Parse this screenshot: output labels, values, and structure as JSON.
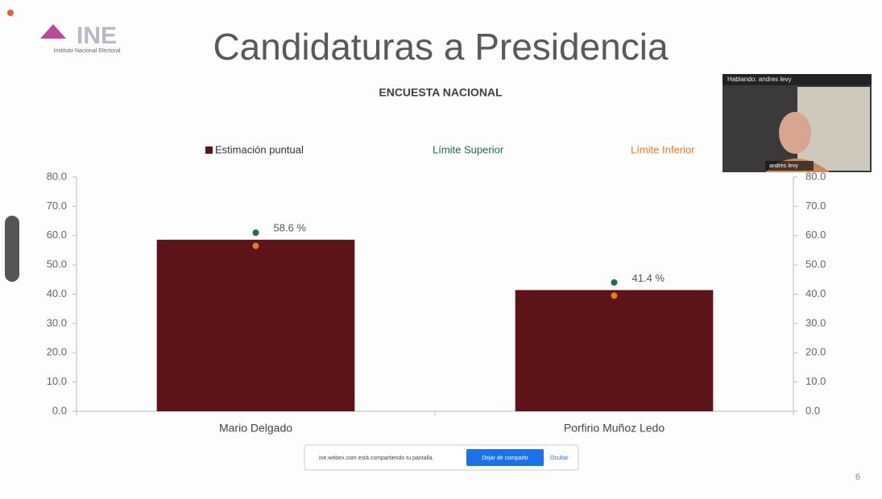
{
  "header": {
    "logo": "INE",
    "logo_subtitle": "Instituto Nacional Electoral",
    "title": "Candidaturas a Presidencia"
  },
  "chart_data": {
    "type": "bar",
    "title": "ENCUESTA NACIONAL",
    "categories": [
      "Mario Delgado",
      "Porfirio Muñoz Ledo"
    ],
    "series": [
      {
        "name": "Estimación puntual",
        "color": "#5c1418",
        "style": "bar",
        "values": [
          58.6,
          41.4
        ],
        "value_labels": [
          "58.6 %",
          "41.4 %"
        ]
      },
      {
        "name": "Límite Superior",
        "color": "#1f6b52",
        "style": "point",
        "values": [
          61.0,
          44.0
        ]
      },
      {
        "name": "Límite Inferior",
        "color": "#e07b2a",
        "style": "point",
        "values": [
          56.5,
          39.5
        ]
      }
    ],
    "ylim": [
      0,
      80
    ],
    "yticks": [
      {
        "value": 0,
        "label": "0.0"
      },
      {
        "value": 10,
        "label": "10.0"
      },
      {
        "value": 20,
        "label": "20.0"
      },
      {
        "value": 30,
        "label": "30.0"
      },
      {
        "value": 40,
        "label": "40.0"
      },
      {
        "value": 50,
        "label": "50.0"
      },
      {
        "value": 60,
        "label": "60.0"
      },
      {
        "value": 70,
        "label": "70.0"
      },
      {
        "value": 80,
        "label": "80.0"
      }
    ],
    "y2lim": [
      0,
      80
    ],
    "y2ticks": [
      {
        "value": 0,
        "label": "0.0"
      },
      {
        "value": 10,
        "label": "10.0"
      },
      {
        "value": 20,
        "label": "20.0"
      },
      {
        "value": 30,
        "label": "30.0"
      },
      {
        "value": 40,
        "label": "40.0"
      },
      {
        "value": 50,
        "label": "50.0"
      },
      {
        "value": 60,
        "label": "60.0"
      },
      {
        "value": 70,
        "label": "70.0"
      },
      {
        "value": 80,
        "label": "80.0"
      }
    ],
    "grid": false
  },
  "video": {
    "speaking": "Hablando: andres levy",
    "name": "andres levy"
  },
  "share_bar": {
    "message": "ine.webex.com está compartiendo tu pantalla.",
    "stop": "Dejar de compartir",
    "hide": "Ocultar"
  },
  "slide_number": "6"
}
